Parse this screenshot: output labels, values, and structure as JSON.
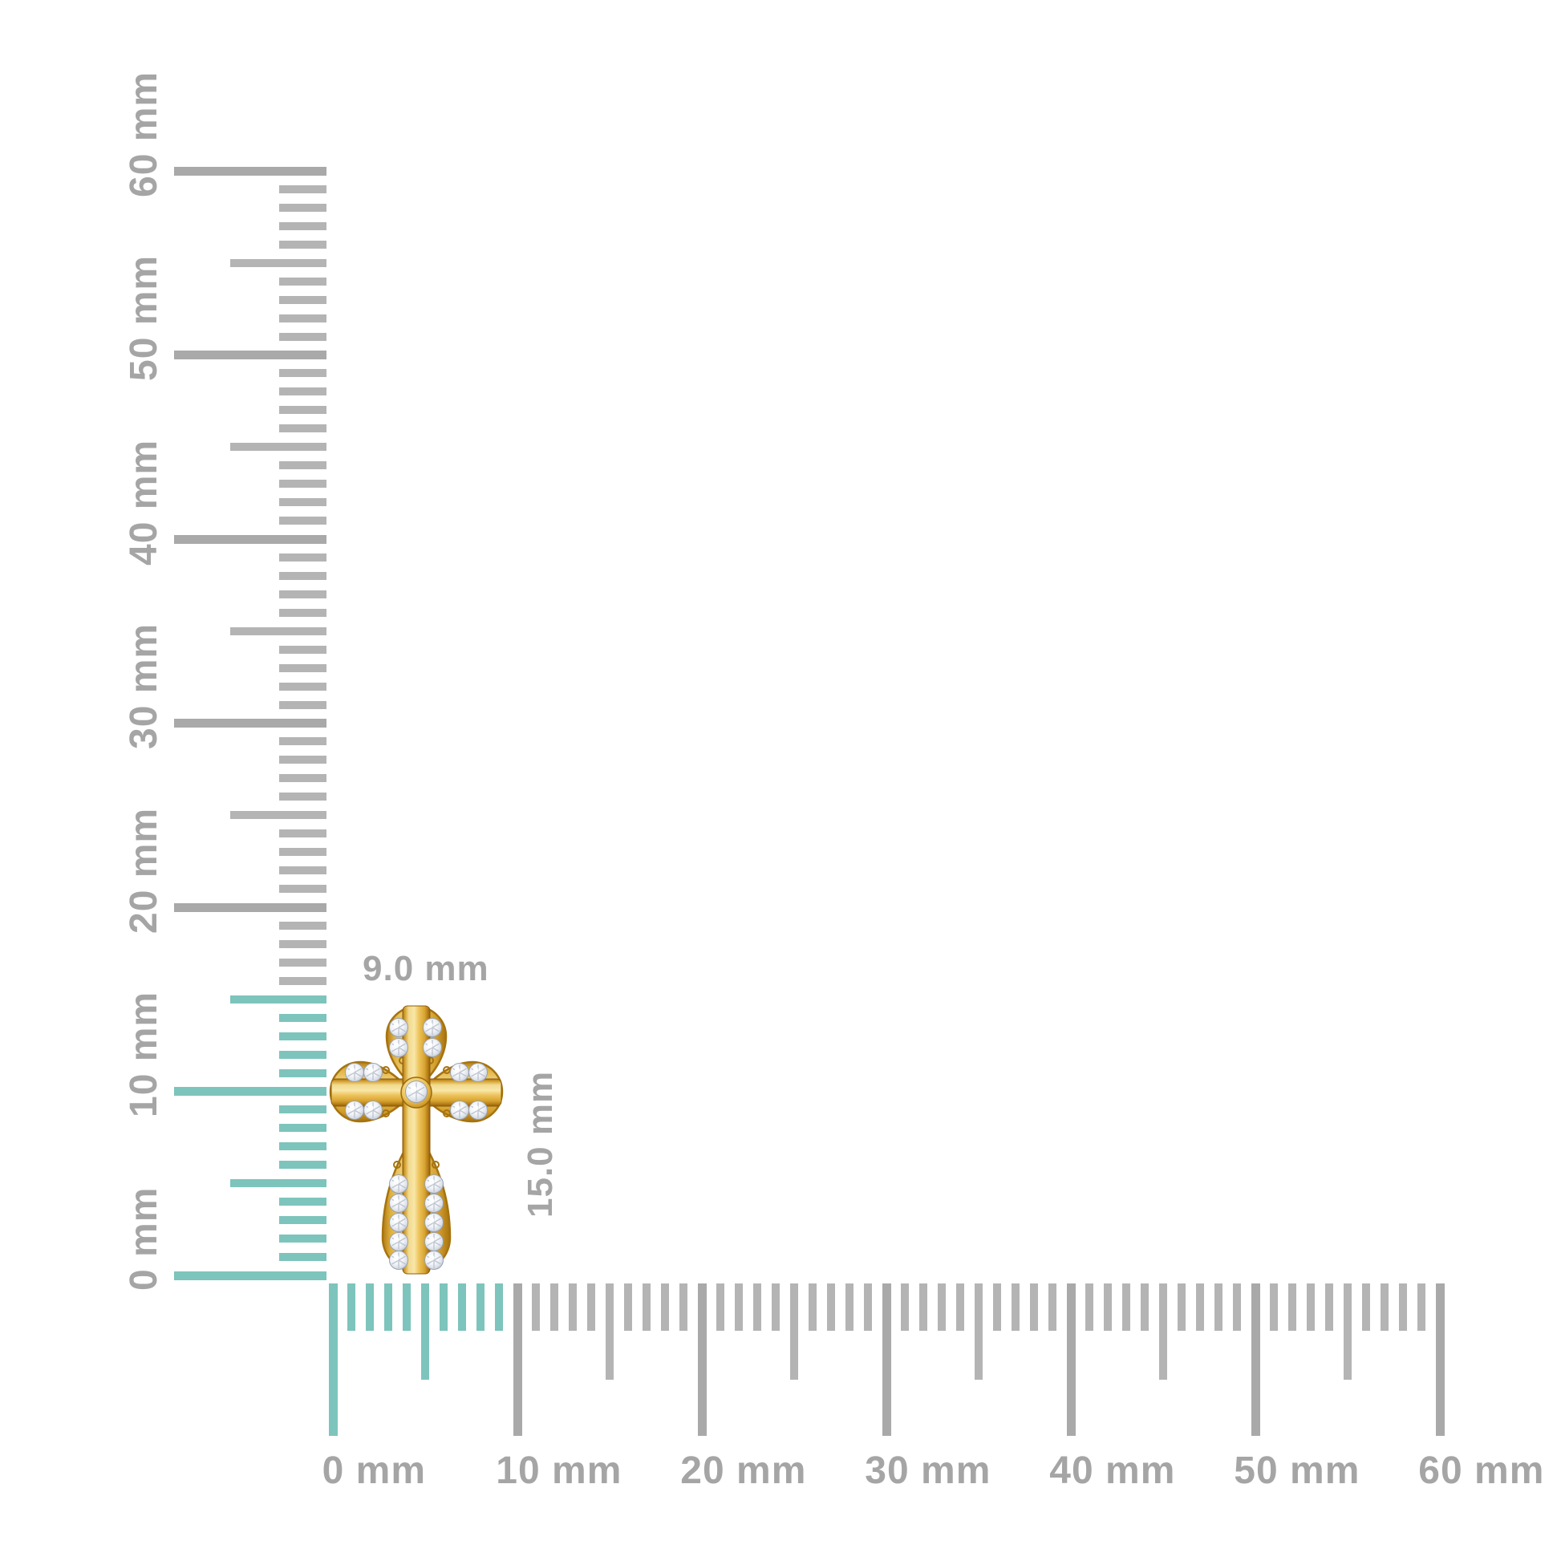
{
  "pendant": {
    "description": "yellow gold cross pendant set with round diamonds",
    "width_label": "9.0 mm",
    "height_label": "15.0 mm",
    "diamond_count": 23,
    "diamonds": [
      [
        519,
        1361,
        13.5
      ],
      [
        497,
        1281,
        11.5
      ],
      [
        539,
        1281,
        11.5
      ],
      [
        497,
        1306,
        11.5
      ],
      [
        539,
        1306,
        11.5
      ],
      [
        442,
        1337,
        11.5
      ],
      [
        465,
        1337,
        11.5
      ],
      [
        442,
        1384,
        11.5
      ],
      [
        465,
        1384,
        11.5
      ],
      [
        573,
        1337,
        11.5
      ],
      [
        596,
        1337,
        11.5
      ],
      [
        573,
        1384,
        11.5
      ],
      [
        596,
        1384,
        11.5
      ],
      [
        497,
        1476,
        11.5
      ],
      [
        541,
        1476,
        11.5
      ],
      [
        497,
        1500,
        11.5
      ],
      [
        541,
        1500,
        11.5
      ],
      [
        497,
        1524,
        11.5
      ],
      [
        541,
        1524,
        11.5
      ],
      [
        497,
        1548,
        11.5
      ],
      [
        541,
        1548,
        11.5
      ],
      [
        497,
        1571,
        11.5
      ],
      [
        541,
        1571,
        11.5
      ]
    ]
  },
  "rulers": {
    "unit": "mm",
    "min_mm": 0,
    "max_mm": 60,
    "major_step_mm": 10,
    "mid_step_mm": 5,
    "labels": [
      "0 mm",
      "10 mm",
      "20 mm",
      "30 mm",
      "40 mm",
      "50 mm",
      "60 mm"
    ],
    "vertical": {
      "highlight_to_mm": 15
    },
    "horizontal": {
      "highlight_to_mm": 9
    }
  },
  "colors": {
    "background": "#ffffff",
    "tick_gray": "#b4b4b4",
    "tick_major_gray": "#a9a9a9",
    "tick_highlight_teal": "#7dc4bc",
    "label_gray": "#a5a5a5",
    "gold_light": "#f8e7a8",
    "gold_mid": "#ecc35b",
    "gold_dark": "#c08a1e",
    "gold_deep": "#8f5e0c",
    "diamond_light": "#ffffff",
    "diamond_dark": "#a7afbd"
  }
}
